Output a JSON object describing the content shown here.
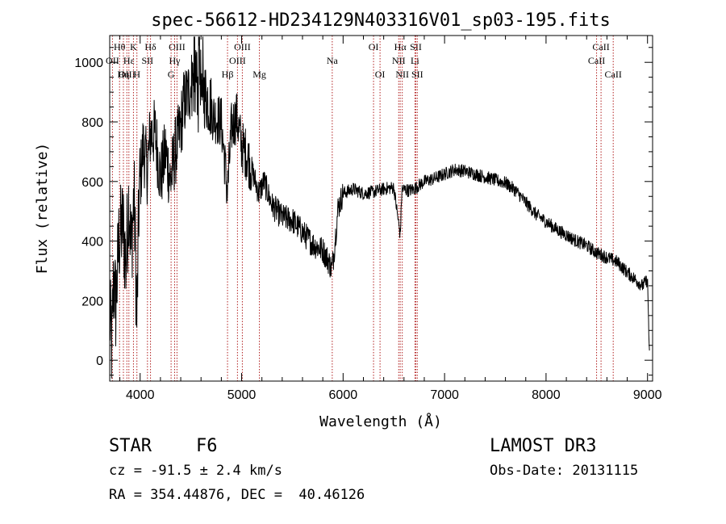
{
  "chart_data": {
    "type": "line",
    "title": "spec-56612-HD234129N403316V01_sp03-195.fits",
    "xlabel": "Wavelength (Å)",
    "ylabel": "Flux (relative)",
    "xlim": [
      3700,
      9050
    ],
    "ylim": [
      -70,
      1090
    ],
    "x_ticks": [
      4000,
      5000,
      6000,
      7000,
      8000,
      9000
    ],
    "y_ticks": [
      0,
      200,
      400,
      600,
      800,
      1000
    ],
    "grid": false,
    "series_color": "#000000",
    "line_color": "#b22222",
    "spectrum_anchors": [
      [
        3700,
        150
      ],
      [
        3720,
        40
      ],
      [
        3740,
        280
      ],
      [
        3760,
        180
      ],
      [
        3790,
        400
      ],
      [
        3830,
        460
      ],
      [
        3860,
        320
      ],
      [
        3890,
        560
      ],
      [
        3910,
        360
      ],
      [
        3940,
        560
      ],
      [
        3968,
        130
      ],
      [
        3990,
        560
      ],
      [
        4030,
        720
      ],
      [
        4070,
        640
      ],
      [
        4100,
        760
      ],
      [
        4150,
        760
      ],
      [
        4200,
        610
      ],
      [
        4250,
        700
      ],
      [
        4300,
        600
      ],
      [
        4340,
        690
      ],
      [
        4390,
        760
      ],
      [
        4430,
        860
      ],
      [
        4480,
        900
      ],
      [
        4520,
        940
      ],
      [
        4560,
        880
      ],
      [
        4620,
        900
      ],
      [
        4680,
        870
      ],
      [
        4720,
        820
      ],
      [
        4800,
        800
      ],
      [
        4860,
        560
      ],
      [
        4900,
        780
      ],
      [
        4950,
        820
      ],
      [
        5000,
        720
      ],
      [
        5050,
        690
      ],
      [
        5100,
        640
      ],
      [
        5170,
        560
      ],
      [
        5220,
        600
      ],
      [
        5300,
        520
      ],
      [
        5400,
        480
      ],
      [
        5500,
        470
      ],
      [
        5600,
        430
      ],
      [
        5700,
        390
      ],
      [
        5800,
        370
      ],
      [
        5860,
        330
      ],
      [
        5890,
        305
      ],
      [
        5910,
        360
      ],
      [
        5950,
        510
      ],
      [
        6000,
        560
      ],
      [
        6100,
        575
      ],
      [
        6200,
        560
      ],
      [
        6300,
        565
      ],
      [
        6400,
        575
      ],
      [
        6500,
        580
      ],
      [
        6563,
        420
      ],
      [
        6580,
        575
      ],
      [
        6650,
        570
      ],
      [
        6700,
        575
      ],
      [
        6800,
        600
      ],
      [
        6900,
        610
      ],
      [
        7000,
        625
      ],
      [
        7100,
        640
      ],
      [
        7200,
        635
      ],
      [
        7300,
        625
      ],
      [
        7400,
        615
      ],
      [
        7500,
        605
      ],
      [
        7600,
        595
      ],
      [
        7700,
        570
      ],
      [
        7800,
        530
      ],
      [
        7900,
        490
      ],
      [
        8000,
        465
      ],
      [
        8100,
        440
      ],
      [
        8200,
        420
      ],
      [
        8300,
        400
      ],
      [
        8400,
        385
      ],
      [
        8500,
        360
      ],
      [
        8600,
        345
      ],
      [
        8700,
        330
      ],
      [
        8800,
        295
      ],
      [
        8900,
        265
      ],
      [
        8950,
        250
      ],
      [
        9000,
        270
      ],
      [
        9020,
        0
      ]
    ],
    "lines": [
      {
        "label": "Hθ",
        "wl": 3797,
        "row": 1
      },
      {
        "label": "OII",
        "wl": 3727,
        "row": 2
      },
      {
        "label": "OIII",
        "wl": 3869,
        "row": 3
      },
      {
        "label": "Hε",
        "wl": 3889,
        "row": 2
      },
      {
        "label": "K",
        "wl": 3934,
        "row": 1
      },
      {
        "label": "Hη",
        "wl": 3835,
        "row": 3
      },
      {
        "label": "H",
        "wl": 3968,
        "row": 3
      },
      {
        "label": "Hδ",
        "wl": 4102,
        "row": 1
      },
      {
        "label": "SII",
        "wl": 4072,
        "row": 2
      },
      {
        "label": "OIII",
        "wl": 4363,
        "row": 1
      },
      {
        "label": "Hγ",
        "wl": 4340,
        "row": 2
      },
      {
        "label": "G",
        "wl": 4305,
        "row": 3
      },
      {
        "label": "Hβ",
        "wl": 4861,
        "row": 3
      },
      {
        "label": "OIII",
        "wl": 5007,
        "row": 1
      },
      {
        "label": "OIII",
        "wl": 4959,
        "row": 2
      },
      {
        "label": "Mg",
        "wl": 5175,
        "row": 3
      },
      {
        "label": "Na",
        "wl": 5893,
        "row": 2
      },
      {
        "label": "OI",
        "wl": 6300,
        "row": 1
      },
      {
        "label": "OI",
        "wl": 6364,
        "row": 3
      },
      {
        "label": "Hα",
        "wl": 6563,
        "row": 1
      },
      {
        "label": "NII",
        "wl": 6548,
        "row": 2
      },
      {
        "label": "NII",
        "wl": 6583,
        "row": 3
      },
      {
        "label": "SII",
        "wl": 6717,
        "row": 1
      },
      {
        "label": "Li",
        "wl": 6708,
        "row": 2
      },
      {
        "label": "SII",
        "wl": 6731,
        "row": 3
      },
      {
        "label": "CaII",
        "wl": 8542,
        "row": 1
      },
      {
        "label": "CaII",
        "wl": 8498,
        "row": 2
      },
      {
        "label": "CaII",
        "wl": 8662,
        "row": 3
      }
    ]
  },
  "info": {
    "object_class": "STAR",
    "subclass": "F6",
    "survey": "LAMOST DR3",
    "cz": "cz = -91.5 ± 2.4 km/s",
    "obs_date": "Obs-Date: 20131115",
    "coords": "RA = 354.44876, DEC =  40.46126"
  }
}
